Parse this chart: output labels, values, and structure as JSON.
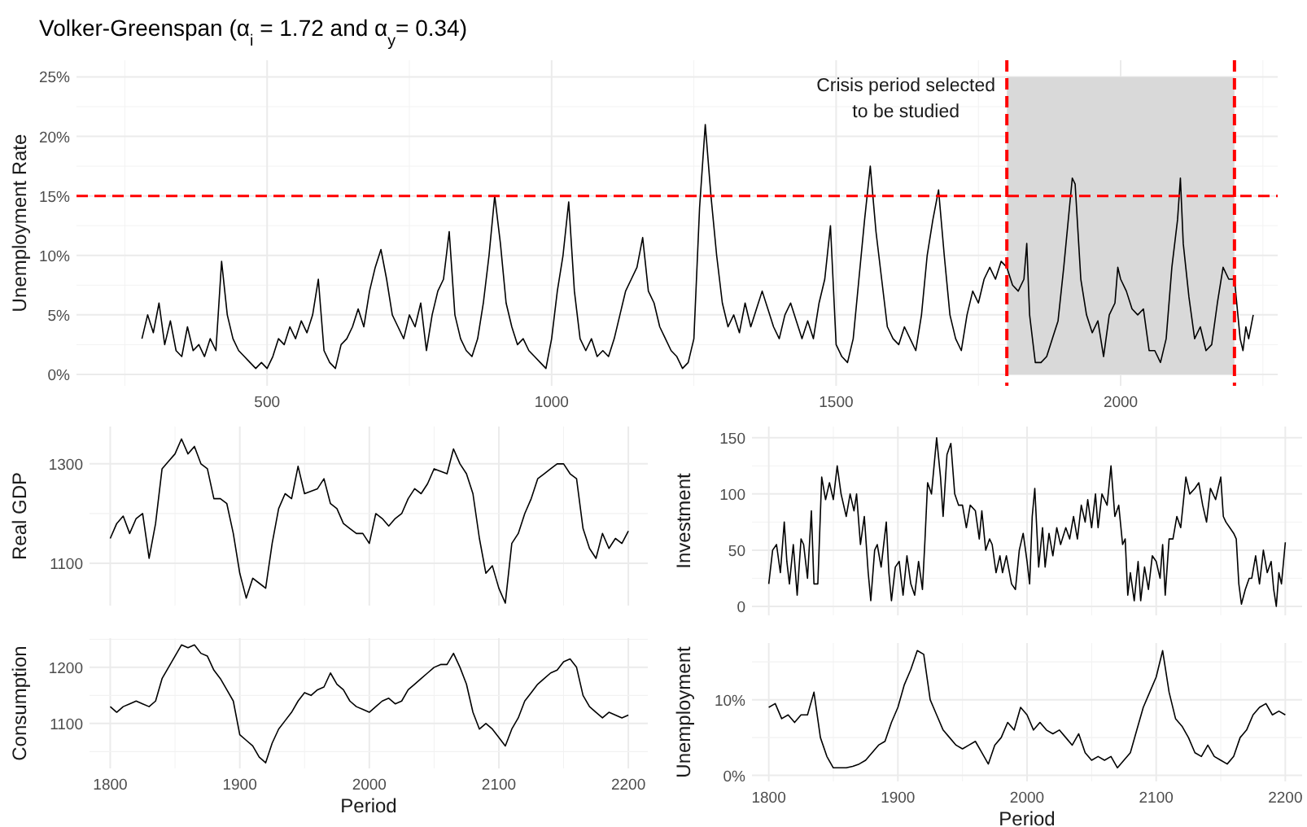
{
  "chart_data": [
    {
      "type": "line",
      "title": "Volker-Greenspan (α$_{i}$ = 1.72 and α$_{y}$= 0.34)",
      "ylabel": "Unemployment Rate",
      "xlim": [
        165,
        2276
      ],
      "xticks": [
        500,
        1000,
        1500,
        2000
      ],
      "ylim": [
        -0.96,
        26.4
      ],
      "yticks": [
        {
          "value": 0,
          "label": "0%"
        },
        {
          "value": 5,
          "label": "5%"
        },
        {
          "value": 10,
          "label": "10%"
        },
        {
          "value": 15,
          "label": "15%"
        },
        {
          "value": 20,
          "label": "20%"
        },
        {
          "value": 25,
          "label": "25%"
        }
      ],
      "grid": true,
      "ref_lines": [
        {
          "axis": "y",
          "value": 15,
          "color": "#ff0000",
          "line_style": "dashed"
        },
        {
          "axis": "x",
          "value": 1800,
          "color": "#ff0000",
          "line_style": "dashed"
        },
        {
          "axis": "x",
          "value": 2200,
          "color": "#ff0000",
          "line_style": "dashed"
        }
      ],
      "bands": [
        {
          "axis": "x",
          "from": 1800,
          "to": 2200,
          "color": "#d9d9d9"
        }
      ],
      "annotations": [
        "Crisis period selected\nto be studied"
      ],
      "series": [
        {
          "color": "#000000",
          "x": [
            280,
            290,
            300,
            310,
            320,
            330,
            340,
            350,
            360,
            370,
            380,
            390,
            400,
            410,
            420,
            430,
            440,
            450,
            460,
            470,
            480,
            490,
            500,
            510,
            520,
            530,
            540,
            550,
            560,
            570,
            580,
            590,
            600,
            610,
            620,
            630,
            640,
            650,
            660,
            670,
            680,
            690,
            700,
            710,
            720,
            730,
            740,
            750,
            760,
            770,
            780,
            790,
            800,
            810,
            820,
            830,
            840,
            850,
            860,
            870,
            880,
            890,
            900,
            910,
            920,
            930,
            940,
            950,
            960,
            970,
            980,
            990,
            1000,
            1010,
            1020,
            1030,
            1040,
            1050,
            1060,
            1070,
            1080,
            1090,
            1100,
            1110,
            1120,
            1130,
            1140,
            1150,
            1160,
            1170,
            1180,
            1190,
            1200,
            1210,
            1220,
            1230,
            1240,
            1250,
            1260,
            1270,
            1280,
            1290,
            1300,
            1310,
            1320,
            1330,
            1340,
            1350,
            1360,
            1370,
            1380,
            1390,
            1400,
            1410,
            1420,
            1430,
            1440,
            1450,
            1460,
            1470,
            1480,
            1490,
            1500,
            1510,
            1520,
            1530,
            1540,
            1550,
            1560,
            1570,
            1580,
            1590,
            1600,
            1610,
            1620,
            1630,
            1640,
            1650,
            1660,
            1670,
            1680,
            1690,
            1700,
            1710,
            1720,
            1730,
            1740,
            1750,
            1760,
            1770,
            1780,
            1790,
            1800,
            1810,
            1820,
            1830,
            1835,
            1840,
            1850,
            1860,
            1870,
            1880,
            1890,
            1900,
            1910,
            1915,
            1920,
            1930,
            1940,
            1950,
            1960,
            1970,
            1980,
            1990,
            1995,
            2000,
            2010,
            2020,
            2030,
            2040,
            2050,
            2060,
            2070,
            2080,
            2090,
            2100,
            2105,
            2110,
            2120,
            2130,
            2140,
            2150,
            2160,
            2170,
            2180,
            2190,
            2200,
            2210,
            2215,
            2220,
            2225,
            2233
          ],
          "values": [
            3,
            5,
            3.5,
            6,
            2.5,
            4.5,
            2,
            1.5,
            4,
            2,
            2.5,
            1.5,
            3,
            2,
            9.5,
            5,
            3,
            2,
            1.5,
            1,
            0.5,
            1,
            0.5,
            1.5,
            3,
            2.5,
            4,
            3,
            4.5,
            3.5,
            5,
            8,
            2,
            1,
            0.5,
            2.5,
            3,
            4,
            5.5,
            4,
            7,
            9,
            10.5,
            8,
            5,
            4,
            3,
            5,
            4,
            6,
            2,
            5,
            7,
            8,
            12,
            5,
            3,
            2,
            1.5,
            3,
            6,
            10,
            15,
            11,
            6,
            4,
            2.5,
            3,
            2,
            1.5,
            1,
            0.5,
            3,
            7,
            10,
            14.5,
            7,
            3,
            2,
            3,
            1.5,
            2,
            1.5,
            3,
            5,
            7,
            8,
            9,
            11.5,
            7,
            6,
            4,
            3,
            2,
            1.5,
            0.5,
            1,
            3,
            14,
            21,
            15,
            10,
            6,
            4,
            5,
            3.5,
            6,
            4,
            5.5,
            7,
            5.5,
            4,
            3,
            5,
            6,
            4.5,
            3,
            4.5,
            3,
            6,
            8,
            12.5,
            2.5,
            1.5,
            1,
            3,
            8,
            13,
            17.5,
            12,
            8,
            4,
            3,
            2.5,
            4,
            3,
            2,
            5,
            10,
            13,
            15.5,
            10,
            5,
            3,
            2,
            5,
            7,
            6,
            8,
            9,
            8,
            9.5,
            9,
            7.5,
            7,
            8,
            11,
            5,
            1,
            1,
            1.5,
            3,
            4.5,
            9,
            14,
            16.5,
            16,
            8,
            5,
            3.5,
            4.5,
            1.5,
            5,
            6,
            9,
            8,
            7,
            5.5,
            5,
            5.5,
            2,
            2,
            1,
            3,
            9,
            13,
            16.5,
            11,
            6.5,
            3,
            4,
            2,
            2.5,
            6,
            9,
            8,
            8,
            3,
            2,
            4,
            3,
            5
          ]
        }
      ]
    },
    {
      "type": "line",
      "ylabel": "Real GDP",
      "xlim": [
        1784,
        2215
      ],
      "xticks": [
        1800,
        1900,
        2000,
        2100,
        2200
      ],
      "ylim": [
        1015,
        1375
      ],
      "yticks": [
        1100,
        {
          "value": 1200,
          "label": null
        },
        1300
      ],
      "grid": true,
      "tick_labels": "y",
      "series": [
        {
          "color": "#000000",
          "x": [
            1800,
            1805,
            1810,
            1815,
            1820,
            1825,
            1830,
            1835,
            1840,
            1845,
            1850,
            1855,
            1860,
            1865,
            1870,
            1875,
            1880,
            1885,
            1890,
            1895,
            1900,
            1905,
            1910,
            1915,
            1920,
            1925,
            1930,
            1935,
            1940,
            1945,
            1950,
            1955,
            1960,
            1965,
            1970,
            1975,
            1980,
            1985,
            1990,
            1995,
            2000,
            2005,
            2010,
            2015,
            2020,
            2025,
            2030,
            2035,
            2040,
            2045,
            2050,
            2055,
            2060,
            2065,
            2070,
            2075,
            2080,
            2085,
            2090,
            2095,
            2100,
            2105,
            2110,
            2115,
            2120,
            2125,
            2130,
            2135,
            2140,
            2145,
            2150,
            2155,
            2160,
            2165,
            2170,
            2175,
            2180,
            2185,
            2190,
            2195,
            2200
          ],
          "values": [
            1150,
            1180,
            1195,
            1160,
            1190,
            1200,
            1110,
            1180,
            1290,
            1305,
            1320,
            1350,
            1320,
            1335,
            1300,
            1290,
            1230,
            1230,
            1220,
            1160,
            1080,
            1030,
            1070,
            1060,
            1050,
            1140,
            1210,
            1240,
            1230,
            1295,
            1240,
            1245,
            1250,
            1270,
            1220,
            1210,
            1180,
            1170,
            1160,
            1160,
            1140,
            1200,
            1190,
            1175,
            1190,
            1200,
            1230,
            1250,
            1240,
            1260,
            1290,
            1285,
            1280,
            1330,
            1300,
            1280,
            1240,
            1150,
            1080,
            1095,
            1050,
            1020,
            1140,
            1160,
            1200,
            1230,
            1270,
            1280,
            1290,
            1300,
            1300,
            1280,
            1270,
            1170,
            1130,
            1110,
            1160,
            1130,
            1150,
            1140,
            1165
          ]
        }
      ]
    },
    {
      "type": "line",
      "ylabel": "Investment",
      "xlim": [
        1787,
        2213
      ],
      "xticks": [
        1800,
        1900,
        2000,
        2100,
        2200
      ],
      "ylim": [
        -8,
        160
      ],
      "yticks": [
        0,
        50,
        100,
        150
      ],
      "grid": true,
      "tick_labels": "y",
      "series": [
        {
          "color": "#000000",
          "x": [
            1800,
            1803,
            1806,
            1809,
            1812,
            1814,
            1816,
            1819,
            1822,
            1825,
            1827,
            1830,
            1833,
            1835,
            1838,
            1841,
            1844,
            1847,
            1850,
            1853,
            1856,
            1860,
            1863,
            1866,
            1868,
            1871,
            1874,
            1877,
            1879,
            1882,
            1884,
            1887,
            1891,
            1893,
            1895,
            1898,
            1901,
            1904,
            1907,
            1910,
            1913,
            1916,
            1919,
            1921,
            1923,
            1926,
            1930,
            1933,
            1935,
            1938,
            1941,
            1944,
            1947,
            1950,
            1953,
            1956,
            1960,
            1963,
            1965,
            1968,
            1971,
            1973,
            1976,
            1979,
            1981,
            1984,
            1988,
            1991,
            1994,
            1997,
            2000,
            2002,
            2004,
            2006,
            2009,
            2012,
            2014,
            2017,
            2020,
            2023,
            2026,
            2030,
            2033,
            2036,
            2039,
            2042,
            2045,
            2047,
            2050,
            2053,
            2055,
            2058,
            2062,
            2065,
            2068,
            2071,
            2074,
            2076,
            2078,
            2080,
            2083,
            2086,
            2088,
            2091,
            2094,
            2097,
            2100,
            2103,
            2105,
            2107,
            2110,
            2113,
            2116,
            2119,
            2123,
            2126,
            2130,
            2133,
            2136,
            2139,
            2142,
            2146,
            2150,
            2152,
            2154,
            2157,
            2160,
            2162,
            2164,
            2166,
            2169,
            2172,
            2174,
            2177,
            2180,
            2183,
            2186,
            2189,
            2191,
            2193,
            2195,
            2197,
            2200
          ],
          "values": [
            20,
            50,
            55,
            30,
            75,
            40,
            20,
            55,
            10,
            60,
            55,
            25,
            85,
            20,
            20,
            115,
            95,
            110,
            95,
            125,
            100,
            80,
            100,
            85,
            100,
            55,
            80,
            30,
            5,
            50,
            55,
            35,
            75,
            30,
            5,
            35,
            40,
            10,
            45,
            20,
            10,
            40,
            15,
            60,
            110,
            100,
            150,
            115,
            80,
            135,
            145,
            100,
            90,
            90,
            70,
            90,
            85,
            60,
            85,
            50,
            60,
            55,
            30,
            45,
            30,
            45,
            20,
            15,
            50,
            65,
            40,
            20,
            80,
            105,
            35,
            70,
            35,
            65,
            45,
            70,
            55,
            70,
            60,
            80,
            60,
            90,
            75,
            95,
            70,
            100,
            70,
            100,
            90,
            125,
            80,
            90,
            55,
            60,
            10,
            30,
            5,
            40,
            5,
            35,
            15,
            45,
            40,
            25,
            55,
            10,
            60,
            60,
            80,
            70,
            115,
            100,
            105,
            110,
            90,
            75,
            105,
            95,
            115,
            80,
            75,
            70,
            65,
            60,
            20,
            2,
            15,
            25,
            25,
            45,
            20,
            50,
            30,
            40,
            15,
            0,
            30,
            20,
            57
          ]
        }
      ]
    },
    {
      "type": "line",
      "ylabel": "Consumption",
      "xlabel": "Period",
      "xlim": [
        1784,
        2215
      ],
      "xticks": [
        1800,
        1900,
        2000,
        2100,
        2200
      ],
      "ylim": [
        1020,
        1252
      ],
      "yticks": [
        {
          "value": 1050,
          "label": null
        },
        1100,
        {
          "value": 1150,
          "label": null
        },
        1200
      ],
      "grid": true,
      "series": [
        {
          "color": "#000000",
          "x": [
            1800,
            1805,
            1810,
            1815,
            1820,
            1825,
            1830,
            1835,
            1840,
            1845,
            1850,
            1855,
            1860,
            1865,
            1870,
            1875,
            1880,
            1885,
            1890,
            1895,
            1900,
            1905,
            1910,
            1915,
            1920,
            1925,
            1930,
            1935,
            1940,
            1945,
            1950,
            1955,
            1960,
            1965,
            1970,
            1975,
            1980,
            1985,
            1990,
            1995,
            2000,
            2005,
            2010,
            2015,
            2020,
            2025,
            2030,
            2035,
            2040,
            2045,
            2050,
            2055,
            2060,
            2065,
            2070,
            2075,
            2080,
            2085,
            2090,
            2095,
            2100,
            2105,
            2110,
            2115,
            2120,
            2125,
            2130,
            2135,
            2140,
            2145,
            2150,
            2155,
            2160,
            2165,
            2170,
            2175,
            2180,
            2185,
            2190,
            2195,
            2200
          ],
          "values": [
            1130,
            1120,
            1130,
            1135,
            1140,
            1135,
            1130,
            1140,
            1180,
            1200,
            1220,
            1240,
            1235,
            1240,
            1225,
            1220,
            1195,
            1180,
            1160,
            1140,
            1080,
            1070,
            1060,
            1040,
            1030,
            1065,
            1090,
            1105,
            1120,
            1140,
            1155,
            1150,
            1160,
            1165,
            1190,
            1170,
            1160,
            1140,
            1130,
            1125,
            1120,
            1130,
            1140,
            1145,
            1135,
            1140,
            1160,
            1170,
            1180,
            1190,
            1200,
            1205,
            1205,
            1225,
            1200,
            1170,
            1120,
            1090,
            1100,
            1090,
            1075,
            1060,
            1090,
            1110,
            1140,
            1155,
            1170,
            1180,
            1190,
            1195,
            1210,
            1215,
            1200,
            1150,
            1130,
            1120,
            1110,
            1120,
            1115,
            1110,
            1115
          ]
        }
      ]
    },
    {
      "type": "line",
      "ylabel": "Unemployment",
      "xlabel": "Period",
      "xlim": [
        1787,
        2213
      ],
      "xticks": [
        1800,
        1900,
        2000,
        2100,
        2200
      ],
      "ylim": [
        -0.8,
        17.5
      ],
      "yticks": [
        {
          "value": 0,
          "label": "0%"
        },
        {
          "value": 5,
          "label": null
        },
        {
          "value": 10,
          "label": "10%"
        },
        {
          "value": 15,
          "label": null
        }
      ],
      "grid": true,
      "series": [
        {
          "color": "#000000",
          "x": [
            1800,
            1805,
            1810,
            1815,
            1820,
            1825,
            1830,
            1835,
            1840,
            1845,
            1850,
            1855,
            1860,
            1865,
            1870,
            1875,
            1880,
            1885,
            1890,
            1895,
            1900,
            1905,
            1910,
            1915,
            1920,
            1925,
            1930,
            1935,
            1940,
            1945,
            1950,
            1955,
            1960,
            1965,
            1970,
            1975,
            1980,
            1985,
            1990,
            1995,
            2000,
            2005,
            2010,
            2015,
            2020,
            2025,
            2030,
            2035,
            2040,
            2045,
            2050,
            2055,
            2060,
            2065,
            2070,
            2075,
            2080,
            2085,
            2090,
            2095,
            2100,
            2105,
            2110,
            2115,
            2120,
            2125,
            2130,
            2135,
            2140,
            2145,
            2150,
            2155,
            2160,
            2165,
            2170,
            2175,
            2180,
            2185,
            2190,
            2195,
            2200
          ],
          "values": [
            9,
            9.5,
            7.5,
            8,
            7,
            8,
            8,
            11,
            5,
            2.5,
            1,
            1,
            1,
            1.2,
            1.5,
            2,
            3,
            4,
            4.5,
            7,
            9,
            12,
            14,
            16.5,
            16,
            10,
            8,
            6,
            5,
            4,
            3.5,
            4,
            4.5,
            3,
            1.5,
            4,
            5,
            7,
            6,
            9,
            8,
            6,
            7,
            6,
            5.5,
            6,
            5,
            4,
            5.5,
            3,
            2,
            2.5,
            2,
            2.5,
            1,
            2,
            3,
            6,
            9,
            11,
            13,
            16.5,
            11,
            7.5,
            6.5,
            5,
            3,
            2.5,
            4,
            2.5,
            2,
            1.5,
            2.5,
            5,
            6,
            8,
            9,
            9.5,
            8,
            8.5,
            8
          ]
        }
      ]
    }
  ]
}
